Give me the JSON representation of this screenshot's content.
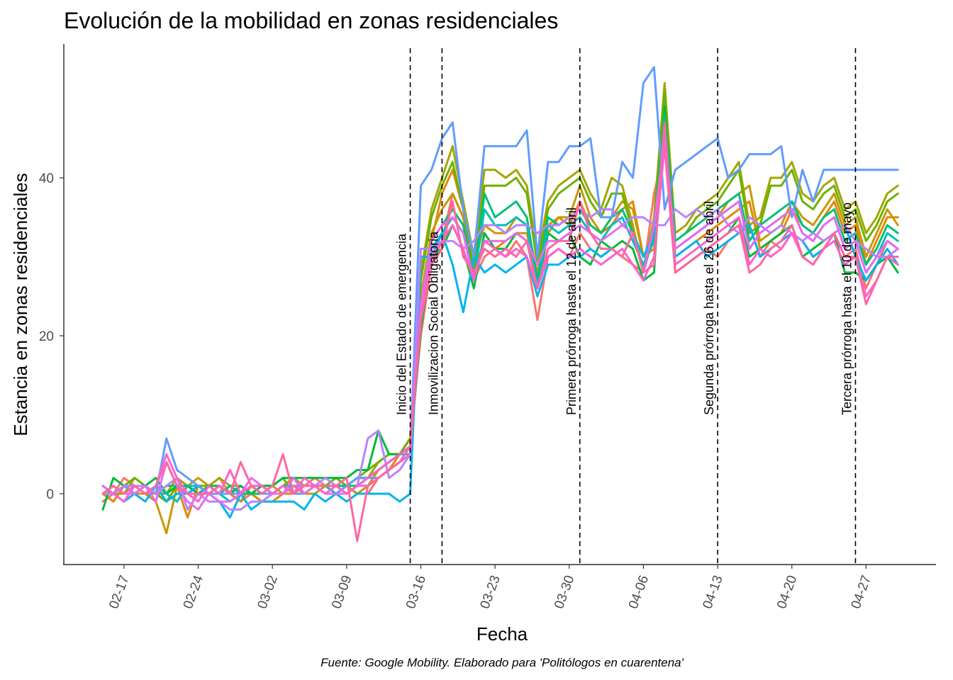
{
  "chart_data": {
    "type": "line",
    "title": "Evolución de la mobilidad en zonas residenciales",
    "xlabel": "Fecha",
    "ylabel": "Estancia en zonas residenciales",
    "caption": "Fuente: Google Mobility. Elaborado para 'Politólogos en cuarentena'",
    "x_start": "2020-02-15",
    "x_end": "2020-05-01",
    "x_ticks": [
      "02-17",
      "02-24",
      "03-02",
      "03-09",
      "03-16",
      "03-23",
      "03-30",
      "04-06",
      "04-13",
      "04-20",
      "04-27"
    ],
    "y_ticks": [
      0,
      20,
      40
    ],
    "ylim": [
      -9,
      57
    ],
    "grid": false,
    "legend": "none",
    "events": [
      {
        "date": "2020-03-15",
        "label": "Inicio del Estado de emergencia"
      },
      {
        "date": "2020-03-18",
        "label": "Inmovilizacion Social Obligatoria"
      },
      {
        "date": "2020-03-31",
        "label": "Primera prórroga hasta el 12 de abril"
      },
      {
        "date": "2020-04-13",
        "label": "Segunda prórroga hasta el 26 de abril"
      },
      {
        "date": "2020-04-26",
        "label": "Tercera prórroga hasta el 10 de mayo"
      }
    ],
    "series": [
      {
        "color": "#f8766d",
        "values": [
          -1,
          0,
          2,
          1,
          0,
          1,
          0,
          -1,
          1,
          0,
          1,
          2,
          0,
          -1,
          0,
          -1,
          0,
          1,
          0,
          1,
          2,
          1,
          0,
          1,
          0,
          0,
          2,
          3,
          4,
          6,
          20,
          29,
          32,
          38,
          35,
          27,
          30,
          31,
          30,
          32,
          30,
          22,
          30,
          31,
          30,
          33,
          31,
          30,
          31,
          30,
          29,
          28,
          38,
          44,
          28,
          29,
          30,
          31,
          30,
          32,
          33,
          34,
          30,
          32,
          31,
          33,
          32,
          30,
          31,
          33,
          30,
          31,
          26,
          29,
          32,
          31
        ]
      },
      {
        "color": "#e58700",
        "values": [
          0,
          -1,
          1,
          0,
          0,
          0,
          -1,
          1,
          -3,
          1,
          0,
          1,
          0,
          1,
          0,
          -1,
          -1,
          0,
          0,
          0,
          1,
          1,
          1,
          0,
          1,
          1,
          2,
          3,
          5,
          6,
          22,
          32,
          38,
          41,
          36,
          28,
          32,
          31,
          32,
          33,
          33,
          27,
          33,
          35,
          34,
          37,
          34,
          33,
          34,
          36,
          37,
          30,
          32,
          49,
          30,
          31,
          32,
          33,
          34,
          35,
          36,
          37,
          31,
          32,
          33,
          36,
          34,
          33,
          35,
          37,
          33,
          34,
          29,
          32,
          35,
          35
        ]
      },
      {
        "color": "#c99800",
        "values": [
          0,
          1,
          0,
          1,
          0,
          -1,
          -5,
          1,
          1,
          2,
          1,
          0,
          0,
          -1,
          1,
          0,
          1,
          0,
          1,
          0,
          0,
          1,
          1,
          1,
          0,
          1,
          3,
          4,
          5,
          6,
          25,
          33,
          36,
          38,
          35,
          29,
          34,
          33,
          33,
          35,
          34,
          28,
          34,
          35,
          35,
          39,
          35,
          33,
          35,
          37,
          36,
          30,
          31,
          50,
          31,
          32,
          33,
          34,
          35,
          37,
          38,
          39,
          32,
          33,
          34,
          37,
          35,
          34,
          36,
          38,
          34,
          35,
          30,
          33,
          36,
          34
        ]
      },
      {
        "color": "#a3a500",
        "values": [
          1,
          0,
          0,
          2,
          1,
          0,
          0,
          2,
          1,
          0,
          1,
          2,
          1,
          0,
          1,
          1,
          0,
          1,
          2,
          1,
          1,
          1,
          1,
          1,
          2,
          2,
          4,
          5,
          5,
          7,
          28,
          36,
          40,
          44,
          37,
          30,
          41,
          41,
          40,
          41,
          39,
          30,
          37,
          39,
          40,
          41,
          38,
          36,
          40,
          39,
          34,
          28,
          35,
          52,
          33,
          34,
          36,
          37,
          38,
          40,
          42,
          34,
          35,
          40,
          40,
          42,
          38,
          37,
          39,
          40,
          36,
          37,
          33,
          35,
          38,
          39
        ]
      },
      {
        "color": "#6bb100",
        "values": [
          1,
          0,
          1,
          2,
          1,
          0,
          -1,
          1,
          0,
          1,
          1,
          0,
          1,
          1,
          0,
          1,
          1,
          2,
          0,
          1,
          1,
          1,
          2,
          1,
          2,
          3,
          4,
          5,
          5,
          7,
          27,
          35,
          39,
          42,
          36,
          28,
          39,
          39,
          39,
          40,
          38,
          29,
          36,
          38,
          39,
          40,
          37,
          35,
          38,
          38,
          33,
          28,
          34,
          51,
          32,
          33,
          35,
          36,
          37,
          39,
          41,
          33,
          34,
          39,
          39,
          41,
          37,
          36,
          38,
          39,
          35,
          36,
          32,
          34,
          37,
          38
        ]
      },
      {
        "color": "#00ba38",
        "values": [
          -2,
          2,
          1,
          0,
          1,
          2,
          0,
          1,
          1,
          0,
          1,
          1,
          0,
          1,
          0,
          1,
          1,
          2,
          2,
          2,
          2,
          2,
          2,
          2,
          3,
          3,
          8,
          5,
          5,
          6,
          21,
          30,
          31,
          34,
          31,
          26,
          33,
          31,
          31,
          33,
          32,
          26,
          33,
          32,
          33,
          30,
          29,
          32,
          31,
          32,
          31,
          27,
          28,
          49,
          28,
          29,
          30,
          31,
          32,
          33,
          35,
          30,
          31,
          32,
          33,
          34,
          30,
          31,
          32,
          33,
          28,
          28,
          27,
          29,
          30,
          28
        ]
      },
      {
        "color": "#00bf7d",
        "values": [
          0,
          1,
          0,
          0,
          1,
          0,
          1,
          1,
          0,
          0,
          1,
          0,
          1,
          0,
          0,
          0,
          0,
          1,
          1,
          1,
          1,
          1,
          1,
          1,
          1,
          2,
          3,
          4,
          5,
          6,
          24,
          32,
          34,
          36,
          34,
          27,
          38,
          35,
          36,
          37,
          35,
          27,
          35,
          34,
          35,
          36,
          34,
          33,
          35,
          36,
          33,
          28,
          33,
          48,
          32,
          33,
          34,
          35,
          36,
          37,
          38,
          32,
          34,
          35,
          36,
          37,
          34,
          33,
          35,
          36,
          32,
          33,
          29,
          31,
          34,
          33
        ]
      },
      {
        "color": "#00c0b8",
        "values": [
          0,
          0,
          1,
          1,
          0,
          1,
          0,
          -1,
          1,
          1,
          0,
          0,
          -1,
          0,
          1,
          0,
          0,
          0,
          1,
          1,
          1,
          1,
          0,
          1,
          2,
          2,
          3,
          4,
          5,
          5,
          22,
          31,
          33,
          35,
          33,
          27,
          36,
          34,
          34,
          35,
          34,
          26,
          34,
          33,
          34,
          35,
          33,
          32,
          34,
          35,
          32,
          29,
          32,
          47,
          31,
          32,
          33,
          34,
          35,
          36,
          37,
          31,
          33,
          34,
          35,
          36,
          33,
          32,
          34,
          35,
          31,
          32,
          28,
          30,
          33,
          32
        ]
      },
      {
        "color": "#00b4ef",
        "values": [
          1,
          0,
          -1,
          0,
          -1,
          1,
          -1,
          0,
          0,
          1,
          0,
          -1,
          -3,
          0,
          -2,
          -1,
          -1,
          -1,
          -1,
          -2,
          0,
          -1,
          0,
          -1,
          0,
          0,
          0,
          0,
          -1,
          0,
          30,
          30,
          33,
          29,
          23,
          30,
          28,
          29,
          28,
          29,
          30,
          25,
          29,
          29,
          30,
          30,
          31,
          30,
          31,
          30,
          33,
          30,
          33,
          44,
          30,
          31,
          32,
          30,
          31,
          32,
          33,
          34,
          30,
          31,
          32,
          33,
          32,
          30,
          31,
          33,
          34,
          30,
          27,
          29,
          31,
          29
        ]
      },
      {
        "color": "#619cff",
        "values": [
          0,
          0,
          1,
          0,
          1,
          0,
          7,
          3,
          2,
          1,
          0,
          0,
          0,
          0,
          1,
          0,
          0,
          1,
          0,
          0,
          1,
          0,
          0,
          1,
          2,
          2,
          2,
          3,
          4,
          5,
          39,
          41,
          45,
          47,
          36,
          30,
          44,
          44,
          44,
          44,
          46,
          30,
          42,
          42,
          44,
          44,
          45,
          35,
          35,
          42,
          40,
          52,
          54,
          36,
          41,
          42,
          43,
          44,
          45,
          40,
          41,
          43,
          43,
          43,
          44,
          35,
          41,
          37,
          41,
          41,
          41,
          41,
          41,
          41,
          41,
          41
        ]
      },
      {
        "color": "#b983ff",
        "values": [
          0,
          0,
          1,
          1,
          1,
          0,
          1,
          2,
          -2,
          0,
          -1,
          -1,
          -2,
          -2,
          -1,
          -1,
          0,
          0,
          1,
          1,
          1,
          2,
          1,
          0,
          1,
          7,
          8,
          2,
          3,
          5,
          31,
          31,
          32,
          32,
          31,
          32,
          34,
          34,
          33,
          34,
          34,
          33,
          34,
          34,
          35,
          36,
          35,
          36,
          36,
          34,
          35,
          35,
          34,
          34,
          36,
          35,
          36,
          35,
          36,
          34,
          33,
          35,
          34,
          33,
          34,
          33,
          32,
          33,
          32,
          33,
          34,
          32,
          31,
          30,
          30,
          31
        ]
      },
      {
        "color": "#e76bf3",
        "values": [
          0,
          1,
          0,
          0,
          1,
          -1,
          4,
          1,
          -1,
          -2,
          0,
          -1,
          -1,
          0,
          2,
          1,
          0,
          0,
          2,
          0,
          1,
          0,
          0,
          0,
          1,
          1,
          2,
          3,
          4,
          5,
          24,
          32,
          34,
          35,
          33,
          27,
          32,
          32,
          32,
          33,
          32,
          29,
          32,
          32,
          33,
          34,
          33,
          32,
          33,
          34,
          33,
          28,
          34,
          45,
          31,
          32,
          33,
          34,
          35,
          36,
          37,
          31,
          33,
          34,
          35,
          36,
          33,
          32,
          34,
          35,
          31,
          32,
          28,
          30,
          32,
          31
        ]
      },
      {
        "color": "#fd61d1",
        "values": [
          1,
          0,
          -1,
          1,
          0,
          1,
          5,
          2,
          0,
          -1,
          1,
          0,
          3,
          0,
          1,
          1,
          0,
          1,
          0,
          2,
          1,
          0,
          1,
          0,
          1,
          2,
          3,
          4,
          5,
          6,
          23,
          30,
          32,
          34,
          31,
          27,
          32,
          31,
          30,
          31,
          30,
          26,
          30,
          31,
          30,
          31,
          30,
          29,
          30,
          31,
          29,
          27,
          30,
          44,
          29,
          30,
          31,
          32,
          33,
          34,
          35,
          29,
          31,
          30,
          31,
          33,
          30,
          29,
          31,
          32,
          29,
          30,
          25,
          27,
          30,
          29
        ]
      },
      {
        "color": "#ff67a4",
        "values": [
          0,
          1,
          0,
          1,
          0,
          1,
          4,
          1,
          0,
          0,
          0,
          1,
          0,
          4,
          1,
          0,
          1,
          5,
          0,
          1,
          1,
          1,
          1,
          2,
          -6,
          1,
          2,
          3,
          4,
          6,
          22,
          29,
          31,
          37,
          30,
          28,
          31,
          30,
          31,
          30,
          32,
          26,
          31,
          32,
          32,
          37,
          33,
          31,
          31,
          30,
          33,
          28,
          29,
          47,
          28,
          29,
          30,
          31,
          32,
          33,
          34,
          28,
          29,
          31,
          32,
          34,
          30,
          29,
          31,
          33,
          30,
          30,
          24,
          27,
          30,
          30
        ]
      }
    ]
  }
}
